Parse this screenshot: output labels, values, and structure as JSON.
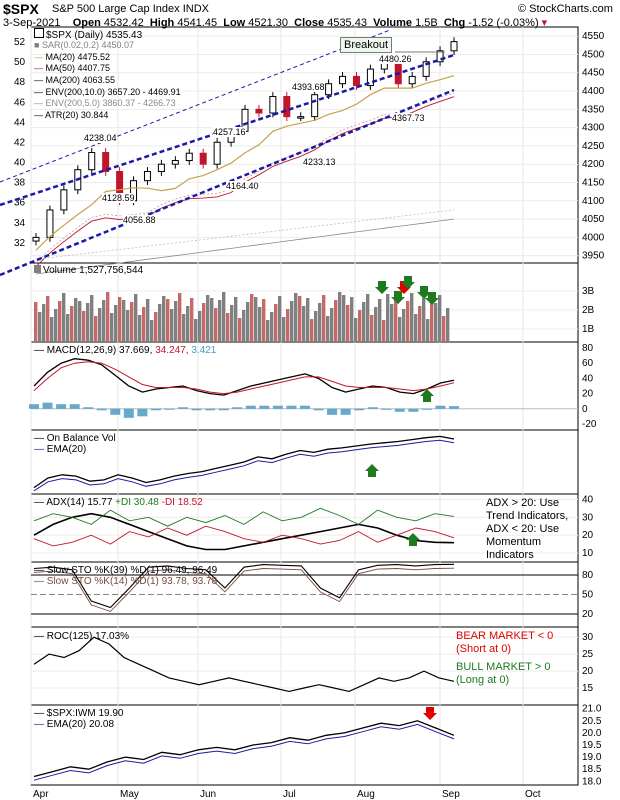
{
  "header": {
    "symbol": "$SPX",
    "name": "S&P 500 Large Cap Index",
    "exchange": "INDX",
    "source": "© StockCharts.com",
    "date": "3-Sep-2021",
    "open_label": "Open",
    "open": "4532.42",
    "high_label": "High",
    "high": "4541.45",
    "low_label": "Low",
    "low": "4521.30",
    "close_label": "Close",
    "close": "4535.43",
    "volume_label": "Volume",
    "volume": "1.5B",
    "chg_label": "Chg",
    "chg": "-1.52 (-0.03%)"
  },
  "panels": {
    "price": {
      "legend": [
        {
          "text": "$SPX (Daily) 4535.43",
          "color": "#000000"
        },
        {
          "text": "SAR(0.02,0.2) 4450.07",
          "color": "#7f7f7f"
        },
        {
          "text": "MA(20) 4475.52",
          "color": "#c8a24a"
        },
        {
          "text": "MA(50) 4407.75",
          "color": "#c0162c"
        },
        {
          "text": "MA(200) 4063.55",
          "color": "#000000"
        },
        {
          "text": "ENV(200,10.0) 3657.20 - 4469.91",
          "color": "#000000"
        },
        {
          "text": "ENV(200,5.0) 3860.37 - 4266.73",
          "color": "#8a8a8a"
        },
        {
          "text": "ATR(20) 30.844",
          "color": "#000000"
        }
      ],
      "annotation_breakout": "Breakout",
      "price_labels": [
        "4480.26",
        "4393.68",
        "4367.73",
        "4257.16",
        "4238.04",
        "4233.13",
        "4164.40",
        "4128.59",
        "4056.88"
      ]
    },
    "volume": {
      "legend": "Volume 1,527,756,544"
    },
    "macd": {
      "legend_a": "MACD(12,26,9) 37.669,",
      "legend_b": "34.247,",
      "legend_c": "3.421"
    },
    "obv": {
      "legend_a": "On Balance Vol",
      "legend_b": "EMA(20)"
    },
    "adx": {
      "legend_a": "ADX(14) 15.77",
      "legend_b": "+DI 30.48",
      "legend_c": "-DI 18.52",
      "note": [
        "ADX > 20: Use",
        "Trend Indicators,",
        "ADX < 20: Use",
        "Momentum",
        "Indicators"
      ]
    },
    "sto": {
      "legend_1": "Slow STO %K(39) %D(1) 96.49, 96.49",
      "legend_2": "Slow STO %K(14) %D(1) 93.78, 93.78"
    },
    "roc": {
      "legend": "ROC(125) 17.03%",
      "bear": [
        "BEAR MARKET < 0",
        "(Short at 0)"
      ],
      "bull": [
        "BULL MARKET > 0",
        "(Long at 0)"
      ]
    },
    "ratio": {
      "legend_a": "$SPX:IWM 19.90",
      "legend_b": "EMA(20) 20.08"
    }
  },
  "x_axis": [
    "Apr",
    "May",
    "Jun",
    "Jul",
    "Aug",
    "Sep",
    "Oct"
  ],
  "colors": {
    "up": "#000000",
    "down": "#c0162c",
    "green": "#1f7a1f",
    "red": "#e00000",
    "blue": "#1a1aa8",
    "vol_gray": "#808080",
    "vol_red": "#c46a6a",
    "hist": "#4a9ac4"
  },
  "chart_data": {
    "type": "line",
    "title": "$SPX S&P 500 Large Cap Index INDX",
    "x": [
      "Apr",
      "May",
      "Jun",
      "Jul",
      "Aug",
      "Sep"
    ],
    "price": {
      "y_right": [
        3950,
        4000,
        4050,
        4100,
        4150,
        4200,
        4250,
        4300,
        4350,
        4400,
        4450,
        4500,
        4550
      ],
      "y_left": [
        32,
        34,
        36,
        38,
        40,
        42,
        44,
        46,
        48,
        50,
        52
      ],
      "close_approx": [
        4000,
        4075,
        4130,
        4185,
        4232,
        4180,
        4100,
        4155,
        4180,
        4200,
        4210,
        4230,
        4200,
        4260,
        4290,
        4350,
        4340,
        4385,
        4330,
        4330,
        4390,
        4420,
        4440,
        4415,
        4460,
        4480,
        4420,
        4440,
        4480,
        4510,
        4535
      ],
      "series": [
        {
          "name": "MA(20)"
        },
        {
          "name": "MA(50)"
        },
        {
          "name": "MA(200)"
        },
        {
          "name": "SAR(0.02,0.2)"
        },
        {
          "name": "ENV(200,10.0)"
        },
        {
          "name": "ENV(200,5.0)"
        }
      ]
    },
    "volume": {
      "y_ticks": [
        "1B",
        "2B",
        "3B"
      ],
      "last": 1527756544
    },
    "macd": {
      "y_ticks": [
        -20,
        0,
        20,
        40,
        60,
        80
      ],
      "macd": 37.669,
      "signal": 34.247,
      "histogram": 3.421
    },
    "adx": {
      "y_ticks": [
        10,
        20,
        30,
        40
      ],
      "adx": 15.77,
      "plus_di": 30.48,
      "minus_di": 18.52
    },
    "sto": {
      "y_ticks": [
        20,
        50,
        80
      ],
      "k39": 96.49,
      "k14": 93.78
    },
    "roc": {
      "y_ticks": [
        15,
        20,
        25,
        30
      ],
      "value": 17.03
    },
    "ratio": {
      "y_ticks": [
        18.0,
        18.5,
        19.0,
        19.5,
        20.0,
        20.5,
        21.0
      ],
      "value": 19.9,
      "ema20": 20.08
    }
  }
}
